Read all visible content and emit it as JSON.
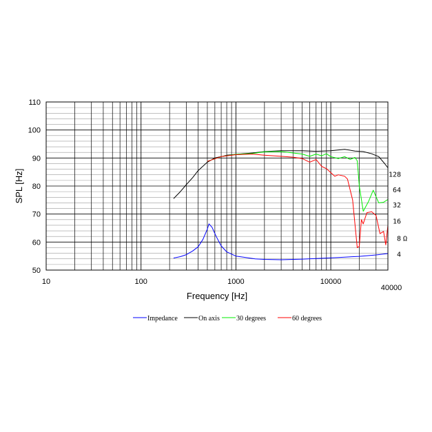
{
  "chart_data": {
    "type": "line",
    "xlabel": "Frequency [Hz]",
    "ylabel": "SPL [Hz]",
    "x_scale": "log",
    "xlim": [
      10,
      40000
    ],
    "ylim": [
      50,
      110
    ],
    "x_ticks": [
      "10",
      "100",
      "1000",
      "10000",
      "40000"
    ],
    "y_ticks": [
      "50",
      "60",
      "70",
      "80",
      "90",
      "100",
      "110"
    ],
    "right_axis": {
      "ticks": [
        "4",
        "8",
        "16",
        "32",
        "64",
        "128"
      ],
      "unit": "Ω"
    },
    "grid": true,
    "legend_position": "bottom",
    "series": [
      {
        "name": "Impedance",
        "color": "#0000ff",
        "x": [
          220,
          260,
          300,
          350,
          400,
          450,
          500,
          520,
          560,
          620,
          700,
          800,
          1000,
          1200,
          1600,
          2000,
          3000,
          5000,
          8000,
          12000,
          20000,
          30000,
          40000
        ],
        "y": [
          54.3,
          54.8,
          55.5,
          56.8,
          58.3,
          61.0,
          64.6,
          66.5,
          65.3,
          62.0,
          58.6,
          56.5,
          55.0,
          54.6,
          54.0,
          53.8,
          53.7,
          53.9,
          54.2,
          54.5,
          54.9,
          55.4,
          55.9
        ]
      },
      {
        "name": "On axis",
        "color": "#000000",
        "x": [
          220,
          260,
          300,
          350,
          400,
          500,
          600,
          700,
          800,
          1000,
          1500,
          2000,
          3000,
          4000,
          5000,
          7000,
          10000,
          14000,
          18000,
          22000,
          27000,
          32000,
          37000,
          40000
        ],
        "y": [
          75.5,
          78.0,
          80.5,
          83.0,
          85.5,
          88.5,
          90.0,
          90.5,
          91.0,
          91.3,
          91.8,
          92.3,
          92.6,
          92.6,
          92.6,
          92.4,
          92.6,
          93.1,
          92.5,
          92.3,
          91.5,
          90.5,
          88.0,
          86.5
        ]
      },
      {
        "name": "30 degrees",
        "color": "#00ee00",
        "x": [
          500,
          700,
          1000,
          1500,
          2000,
          3000,
          4000,
          5000,
          6000,
          7000,
          8000,
          9000,
          10000,
          12000,
          14000,
          16000,
          18000,
          19000,
          20000,
          22000,
          25000,
          28000,
          32000,
          36000,
          40000
        ],
        "y": [
          88.8,
          90.5,
          91.3,
          91.6,
          92.2,
          92.3,
          91.8,
          91.4,
          90.6,
          91.4,
          90.8,
          91.5,
          90.5,
          89.8,
          90.5,
          89.5,
          90.2,
          89.0,
          80.0,
          71.0,
          74.5,
          78.5,
          74.0,
          74.2,
          75.2
        ]
      },
      {
        "name": "60 degrees",
        "color": "#ff0000",
        "x": [
          500,
          700,
          1000,
          1500,
          2000,
          3000,
          4000,
          5000,
          6000,
          7000,
          8000,
          9000,
          10000,
          11000,
          12000,
          14000,
          15000,
          17000,
          19000,
          20000,
          21000,
          22000,
          24000,
          27000,
          30000,
          33000,
          36000,
          38000,
          40000
        ],
        "y": [
          88.8,
          90.5,
          91.2,
          91.4,
          91.0,
          90.6,
          90.3,
          89.8,
          88.5,
          89.5,
          87.0,
          86.2,
          84.8,
          83.5,
          84.0,
          83.5,
          82.5,
          75.0,
          58.0,
          58.5,
          68.0,
          66.5,
          70.5,
          70.8,
          69.5,
          63.0,
          63.8,
          59.0,
          66.0
        ]
      }
    ]
  }
}
